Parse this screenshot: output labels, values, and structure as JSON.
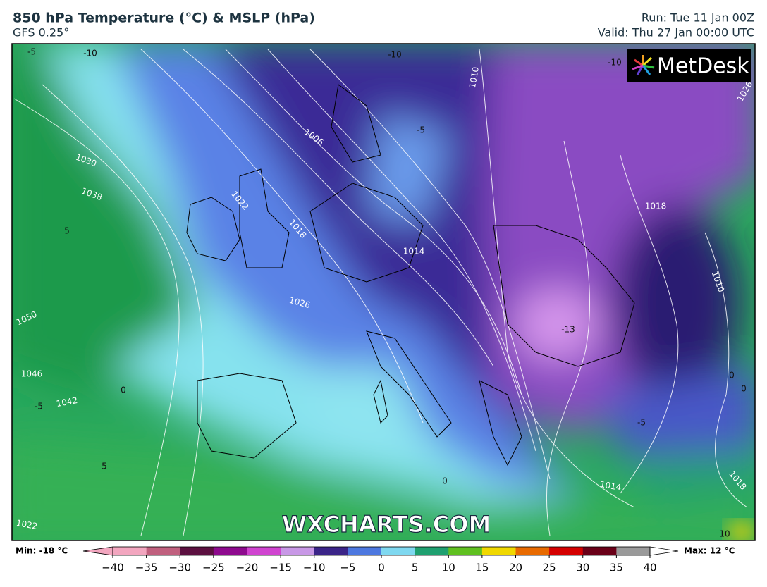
{
  "header": {
    "title": "850 hPa Temperature (°C) & MSLP (hPa)",
    "model": "GFS 0.25°",
    "run": "Run: Tue 11 Jan 00Z",
    "valid": "Valid: Thu 27 Jan 00:00 UTC"
  },
  "logo": "MetDesk",
  "watermark": "WXCHARTS.COM",
  "map": {
    "labels": [
      "1030",
      "1038",
      "1050",
      "1046",
      "1042",
      "1022",
      "1006",
      "1022",
      "1018",
      "1014",
      "1026",
      "1010",
      "1018",
      "1010",
      "1014",
      "1018",
      "1026",
      "-5",
      "-10",
      "-10",
      "-5",
      "-10",
      "-13",
      "5",
      "0",
      "-5",
      "0",
      "5",
      "0",
      "10",
      "-5",
      "0"
    ]
  },
  "colorbar": {
    "min_label": "Min: -18 °C",
    "max_label": "Max: 12 °C",
    "colors": [
      "#f2a6bf",
      "#c0607e",
      "#5c1040",
      "#8e0a8e",
      "#d044d0",
      "#c898e6",
      "#3b2488",
      "#4d78e0",
      "#7fd8f0",
      "#1fa070",
      "#60c020",
      "#f0d800",
      "#e86a00",
      "#d40000",
      "#6a0018",
      "#9a9a9a"
    ],
    "ticks": [
      {
        "value": -40,
        "label": "−40"
      },
      {
        "value": -35,
        "label": "−35"
      },
      {
        "value": -30,
        "label": "−30"
      },
      {
        "value": -25,
        "label": "−25"
      },
      {
        "value": -20,
        "label": "−20"
      },
      {
        "value": -15,
        "label": "−15"
      },
      {
        "value": -10,
        "label": "−10"
      },
      {
        "value": -5,
        "label": "−5"
      },
      0,
      5,
      10,
      15,
      20,
      25,
      30,
      35,
      40
    ]
  }
}
